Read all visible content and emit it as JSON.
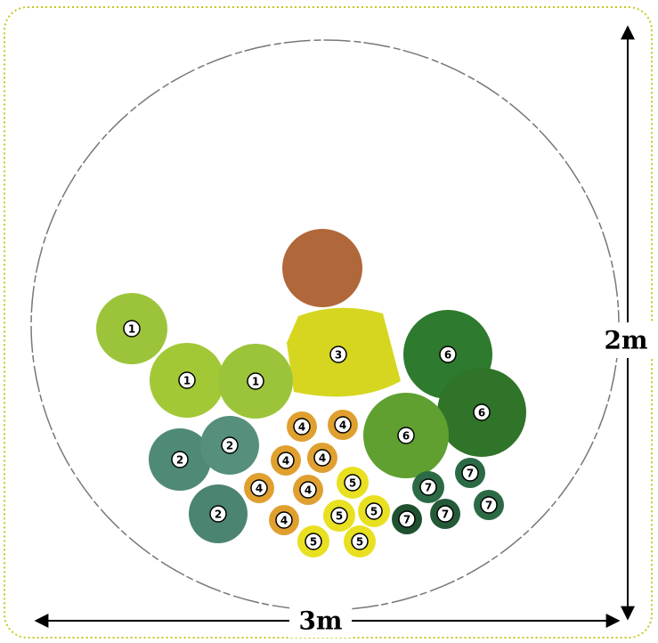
{
  "dimensions": {
    "height": "2m",
    "width": "3m"
  },
  "plants": [
    {
      "label": "1"
    },
    {
      "label": "1"
    },
    {
      "label": "1"
    },
    {
      "label": "2"
    },
    {
      "label": "2"
    },
    {
      "label": "2"
    },
    {
      "label": "3"
    },
    {
      "label": "4"
    },
    {
      "label": "4"
    },
    {
      "label": "4"
    },
    {
      "label": "4"
    },
    {
      "label": "4"
    },
    {
      "label": "4"
    },
    {
      "label": "4"
    },
    {
      "label": "5"
    },
    {
      "label": "5"
    },
    {
      "label": "5"
    },
    {
      "label": "5"
    },
    {
      "label": "5"
    },
    {
      "label": "6"
    },
    {
      "label": "6"
    },
    {
      "label": "6"
    },
    {
      "label": "7"
    },
    {
      "label": "7"
    },
    {
      "label": "7"
    },
    {
      "label": "7"
    },
    {
      "label": "7"
    }
  ]
}
